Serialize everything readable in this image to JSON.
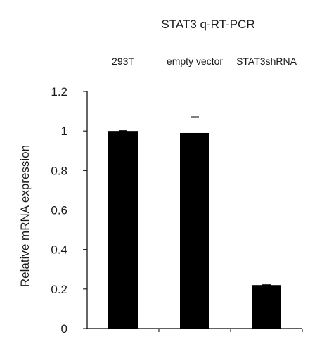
{
  "chart_data": {
    "type": "bar",
    "title": "STAT3 q-RT-PCR",
    "categories": [
      "293T",
      "empty vector",
      "STAT3shRNA"
    ],
    "values": [
      1.0,
      0.99,
      0.22
    ],
    "errors": [
      0.0,
      0.08,
      0.0
    ],
    "ylabel": "Relative mRNA expression",
    "xlabel": "",
    "ylim": [
      0,
      1.2
    ],
    "yticks": [
      0,
      0.2,
      0.4,
      0.6,
      0.8,
      1.0,
      1.2
    ],
    "ytick_labels": [
      "0",
      "0.2",
      "0.4",
      "0.6",
      "0.8",
      "1",
      "1.2"
    ],
    "category_labels_position": "top",
    "grid": false,
    "legend": "none",
    "bar_color": "#000000"
  }
}
